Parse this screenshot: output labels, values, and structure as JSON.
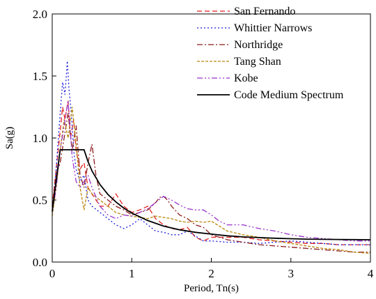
{
  "chart_data": {
    "type": "line",
    "xlabel": "Period, Tn(s)",
    "ylabel": "Sa(g)",
    "xlim": [
      0,
      4
    ],
    "ylim": [
      0,
      2.0
    ],
    "xticks": [
      0,
      1,
      2,
      3,
      4
    ],
    "yticks": [
      0.0,
      0.5,
      1.0,
      1.5,
      2.0
    ],
    "xtick_labels": [
      "0",
      "1",
      "2",
      "3",
      "4"
    ],
    "ytick_labels": [
      "0.0",
      "0.5",
      "1.0",
      "1.5",
      "2.0"
    ],
    "grid": false,
    "legend_position": "top-right",
    "series": [
      {
        "name": "San Fernando",
        "color": "#e02020",
        "dash": "dashed",
        "x": [
          0,
          0.05,
          0.1,
          0.13,
          0.16,
          0.2,
          0.23,
          0.27,
          0.3,
          0.35,
          0.4,
          0.45,
          0.5,
          0.6,
          0.7,
          0.8,
          0.9,
          1.0,
          1.1,
          1.2,
          1.3,
          1.4,
          1.5,
          1.6,
          1.7,
          1.8,
          1.9,
          2.0,
          2.2,
          2.4,
          2.6,
          2.8,
          3.0,
          3.2,
          3.4,
          3.6,
          3.8,
          4.0
        ],
        "y": [
          0.45,
          0.75,
          1.05,
          1.25,
          1.15,
          1.3,
          1.0,
          1.15,
          0.9,
          0.75,
          0.8,
          0.6,
          0.55,
          0.45,
          0.45,
          0.55,
          0.45,
          0.4,
          0.42,
          0.45,
          0.35,
          0.3,
          0.27,
          0.26,
          0.28,
          0.2,
          0.17,
          0.2,
          0.2,
          0.2,
          0.18,
          0.17,
          0.16,
          0.15,
          0.15,
          0.14,
          0.14,
          0.14
        ]
      },
      {
        "name": "Whittier Narrows",
        "color": "#1a1adc",
        "dash": "dotted",
        "x": [
          0,
          0.05,
          0.1,
          0.13,
          0.16,
          0.19,
          0.21,
          0.24,
          0.27,
          0.3,
          0.35,
          0.4,
          0.45,
          0.5,
          0.6,
          0.7,
          0.8,
          0.9,
          1.0,
          1.1,
          1.2,
          1.3,
          1.4,
          1.5,
          1.6,
          1.7,
          1.8,
          1.9,
          2.0,
          2.2,
          2.4,
          2.6,
          2.8,
          3.0,
          3.2,
          3.4,
          3.6,
          3.8,
          4.0
        ],
        "y": [
          0.4,
          0.75,
          1.2,
          1.45,
          1.35,
          1.62,
          1.4,
          1.2,
          0.9,
          0.75,
          0.65,
          0.7,
          0.5,
          0.45,
          0.4,
          0.35,
          0.3,
          0.27,
          0.3,
          0.35,
          0.3,
          0.25,
          0.24,
          0.22,
          0.22,
          0.25,
          0.21,
          0.17,
          0.17,
          0.16,
          0.16,
          0.15,
          0.16,
          0.17,
          0.16,
          0.15,
          0.14,
          0.14,
          0.14
        ]
      },
      {
        "name": "Northridge",
        "color": "#8b1a1a",
        "dash": "dashdot",
        "x": [
          0,
          0.05,
          0.1,
          0.15,
          0.2,
          0.25,
          0.3,
          0.35,
          0.4,
          0.45,
          0.5,
          0.55,
          0.6,
          0.7,
          0.8,
          0.9,
          1.0,
          1.1,
          1.2,
          1.3,
          1.35,
          1.4,
          1.45,
          1.5,
          1.6,
          1.7,
          1.8,
          1.9,
          2.0,
          2.2,
          2.4,
          2.6,
          2.8,
          3.0,
          3.2,
          3.4,
          3.6,
          3.8,
          4.0
        ],
        "y": [
          0.45,
          0.7,
          0.8,
          1.0,
          1.2,
          0.9,
          1.1,
          0.7,
          0.6,
          0.8,
          0.95,
          0.7,
          0.55,
          0.5,
          0.45,
          0.42,
          0.38,
          0.4,
          0.42,
          0.48,
          0.52,
          0.53,
          0.5,
          0.45,
          0.38,
          0.35,
          0.3,
          0.28,
          0.22,
          0.18,
          0.16,
          0.14,
          0.13,
          0.12,
          0.11,
          0.1,
          0.09,
          0.08,
          0.08
        ]
      },
      {
        "name": "Tang Shan",
        "color": "#b8860b",
        "dash": "shortdash",
        "x": [
          0,
          0.05,
          0.1,
          0.15,
          0.2,
          0.25,
          0.3,
          0.35,
          0.4,
          0.45,
          0.5,
          0.6,
          0.7,
          0.8,
          0.9,
          1.0,
          1.1,
          1.2,
          1.3,
          1.4,
          1.5,
          1.6,
          1.7,
          1.8,
          1.9,
          2.0,
          2.2,
          2.4,
          2.6,
          2.8,
          3.0,
          3.2,
          3.4,
          3.6,
          3.8,
          4.0
        ],
        "y": [
          0.37,
          0.6,
          0.9,
          1.15,
          1.0,
          1.25,
          0.95,
          0.6,
          0.42,
          0.6,
          0.55,
          0.5,
          0.45,
          0.4,
          0.38,
          0.37,
          0.36,
          0.35,
          0.37,
          0.36,
          0.35,
          0.33,
          0.32,
          0.33,
          0.32,
          0.33,
          0.25,
          0.22,
          0.2,
          0.17,
          0.15,
          0.13,
          0.11,
          0.1,
          0.08,
          0.07
        ]
      },
      {
        "name": "Kobe",
        "color": "#9932cc",
        "dash": "dashdotdot",
        "x": [
          0,
          0.05,
          0.1,
          0.15,
          0.2,
          0.25,
          0.3,
          0.35,
          0.4,
          0.45,
          0.5,
          0.6,
          0.7,
          0.8,
          0.9,
          1.0,
          1.1,
          1.2,
          1.3,
          1.4,
          1.5,
          1.6,
          1.7,
          1.8,
          1.9,
          2.0,
          2.1,
          2.2,
          2.4,
          2.6,
          2.8,
          3.0,
          3.2,
          3.4,
          3.6,
          3.8,
          4.0
        ],
        "y": [
          0.4,
          0.6,
          0.9,
          1.1,
          1.3,
          0.85,
          0.65,
          0.6,
          0.65,
          0.7,
          0.6,
          0.45,
          0.38,
          0.35,
          0.38,
          0.37,
          0.4,
          0.43,
          0.48,
          0.53,
          0.5,
          0.46,
          0.43,
          0.42,
          0.42,
          0.38,
          0.33,
          0.3,
          0.3,
          0.27,
          0.25,
          0.22,
          0.2,
          0.19,
          0.18,
          0.17,
          0.17
        ]
      },
      {
        "name": "Code Medium Spectrum",
        "color": "#000000",
        "dash": "solid",
        "x": [
          0,
          0.1,
          0.4,
          0.45,
          0.5,
          0.6,
          0.7,
          0.8,
          0.9,
          1.0,
          1.2,
          1.4,
          1.6,
          1.8,
          2.0,
          2.2,
          2.4,
          2.6,
          2.8,
          3.0,
          3.2,
          3.4,
          3.6,
          3.8,
          4.0
        ],
        "y": [
          0.41,
          0.905,
          0.905,
          0.81,
          0.735,
          0.625,
          0.545,
          0.485,
          0.435,
          0.395,
          0.335,
          0.29,
          0.26,
          0.24,
          0.225,
          0.212,
          0.203,
          0.197,
          0.192,
          0.188,
          0.185,
          0.183,
          0.182,
          0.181,
          0.18
        ]
      }
    ]
  }
}
